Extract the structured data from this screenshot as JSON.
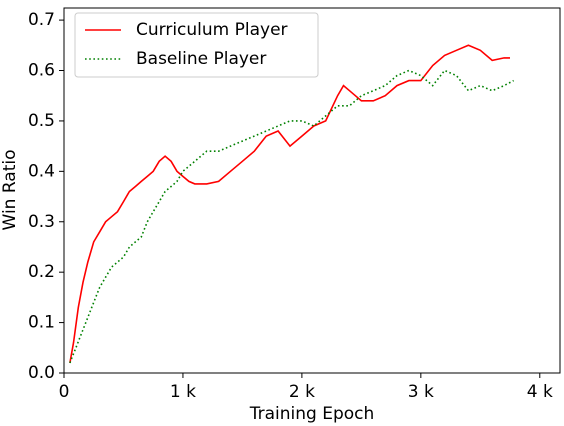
{
  "chart_data": {
    "type": "line",
    "xlabel": "Training Epoch",
    "ylabel": "Win Ratio",
    "xlim": [
      0,
      4170
    ],
    "ylim": [
      0,
      0.724
    ],
    "xticks": [
      0,
      {
        "value": 1000,
        "label": "1 k"
      },
      {
        "value": 2000,
        "label": "2 k"
      },
      {
        "value": 3000,
        "label": "3 k"
      },
      {
        "value": 4000,
        "label": "4 k"
      }
    ],
    "yticks": [
      {
        "value": 0,
        "label": "0.0"
      },
      0.1,
      0.2,
      0.3,
      0.4,
      0.5,
      0.6,
      0.7
    ],
    "legend": "upper left",
    "series": [
      {
        "name": "Curriculum Player",
        "color": "#ff0000",
        "style": "solid",
        "x": [
          50,
          80,
          120,
          160,
          200,
          250,
          300,
          350,
          400,
          450,
          500,
          550,
          600,
          650,
          700,
          750,
          800,
          850,
          900,
          950,
          1000,
          1050,
          1100,
          1200,
          1300,
          1400,
          1500,
          1600,
          1700,
          1800,
          1900,
          2000,
          2100,
          2200,
          2300,
          2350,
          2400,
          2500,
          2600,
          2700,
          2800,
          2900,
          3000,
          3100,
          3200,
          3300,
          3400,
          3500,
          3600,
          3700,
          3750
        ],
        "values": [
          0.02,
          0.06,
          0.13,
          0.18,
          0.22,
          0.26,
          0.28,
          0.3,
          0.31,
          0.32,
          0.34,
          0.36,
          0.37,
          0.38,
          0.39,
          0.4,
          0.42,
          0.43,
          0.42,
          0.4,
          0.39,
          0.38,
          0.375,
          0.375,
          0.38,
          0.4,
          0.42,
          0.44,
          0.47,
          0.48,
          0.45,
          0.47,
          0.49,
          0.5,
          0.55,
          0.57,
          0.56,
          0.54,
          0.54,
          0.55,
          0.57,
          0.58,
          0.58,
          0.61,
          0.63,
          0.64,
          0.65,
          0.64,
          0.62,
          0.625,
          0.625
        ]
      },
      {
        "name": "Baseline Player",
        "color": "#008000",
        "style": "dotted",
        "x": [
          50,
          100,
          150,
          200,
          250,
          300,
          350,
          400,
          450,
          500,
          550,
          600,
          650,
          700,
          750,
          800,
          850,
          900,
          950,
          1000,
          1100,
          1200,
          1300,
          1400,
          1500,
          1600,
          1700,
          1800,
          1900,
          2000,
          2100,
          2200,
          2300,
          2400,
          2500,
          2600,
          2700,
          2800,
          2900,
          3000,
          3100,
          3200,
          3300,
          3400,
          3500,
          3600,
          3700,
          3780
        ],
        "values": [
          0.02,
          0.05,
          0.08,
          0.11,
          0.14,
          0.17,
          0.19,
          0.21,
          0.22,
          0.23,
          0.25,
          0.26,
          0.27,
          0.3,
          0.32,
          0.34,
          0.36,
          0.37,
          0.38,
          0.4,
          0.42,
          0.44,
          0.44,
          0.45,
          0.46,
          0.47,
          0.48,
          0.49,
          0.5,
          0.5,
          0.49,
          0.51,
          0.53,
          0.53,
          0.55,
          0.56,
          0.57,
          0.59,
          0.6,
          0.59,
          0.57,
          0.6,
          0.59,
          0.56,
          0.57,
          0.56,
          0.57,
          0.58
        ]
      }
    ]
  }
}
